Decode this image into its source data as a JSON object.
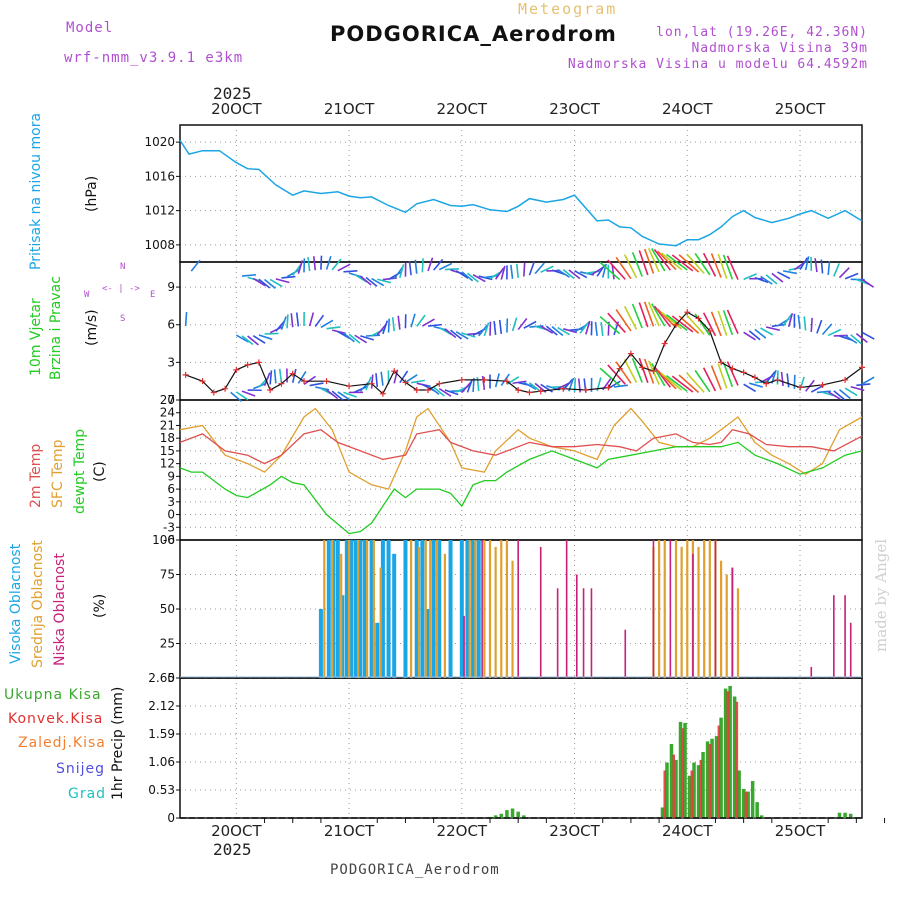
{
  "header": {
    "model_label": "Model",
    "model_name": "wrf-nmm_v3.9.1  e3km",
    "meteogram": "Meteogram",
    "station": "PODGORICA_Aerodrom",
    "lonlat": "lon,lat (19.26E, 42.36N)",
    "altitude": "Nadmorska Visina 39m",
    "model_altitude": "Nadmorska Visina u modelu 64.4592m",
    "footer_station": "PODGORICA_Aerodrom",
    "watermark": "made by Angel",
    "year_top": "2025",
    "year_bottom": "2025"
  },
  "colors": {
    "pressure": "#1aa6e6",
    "t2m": "#e05050",
    "sfc": "#e0a030",
    "dewpt": "#22cc22",
    "high": "#1aa6e6",
    "mid": "#e0a030",
    "low": "#c8207a",
    "total": "#3aa82e",
    "conv": "#e03030",
    "strat": "#f08030",
    "snow": "#5050e0",
    "grad": "#20c0c0",
    "purple": "#b050d0"
  },
  "chart_data": [
    {
      "type": "line",
      "panel": "pressure",
      "title": "Pritisak na nivou mora",
      "ylabel": "(hPa)",
      "ylim": [
        1006,
        1022
      ],
      "yticks": [
        "1008",
        "1012",
        "1016",
        "1020"
      ],
      "x_unit": "days since 20 OCT 00Z",
      "xlim": [
        -0.5,
        5.55
      ],
      "x_tick_labels": [
        "20OCT",
        "21OCT",
        "22OCT",
        "23OCT",
        "24OCT",
        "25OCT"
      ],
      "series": [
        {
          "name": "MSLP",
          "x": [
            -0.5,
            -0.42,
            -0.3,
            -0.15,
            0.0,
            0.1,
            0.2,
            0.35,
            0.5,
            0.6,
            0.75,
            0.9,
            1.0,
            1.1,
            1.2,
            1.35,
            1.5,
            1.6,
            1.75,
            1.9,
            2.0,
            2.1,
            2.25,
            2.4,
            2.5,
            2.6,
            2.75,
            2.9,
            3.0,
            3.1,
            3.2,
            3.3,
            3.4,
            3.5,
            3.6,
            3.75,
            3.9,
            4.0,
            4.1,
            4.2,
            4.3,
            4.4,
            4.5,
            4.6,
            4.75,
            4.9,
            5.0,
            5.1,
            5.25,
            5.4,
            5.55
          ],
          "values": [
            1020.2,
            1018.6,
            1019.0,
            1019.0,
            1017.6,
            1016.9,
            1016.8,
            1015.0,
            1013.8,
            1014.3,
            1014.0,
            1014.2,
            1013.7,
            1013.5,
            1013.6,
            1012.6,
            1011.8,
            1012.8,
            1013.3,
            1012.6,
            1012.5,
            1012.7,
            1012.1,
            1011.9,
            1012.5,
            1013.4,
            1013.0,
            1013.3,
            1013.8,
            1012.3,
            1010.8,
            1010.9,
            1010.1,
            1010.0,
            1009.0,
            1008.1,
            1007.9,
            1008.6,
            1008.6,
            1009.2,
            1010.1,
            1011.3,
            1012.0,
            1011.2,
            1010.6,
            1011.1,
            1011.6,
            1012.0,
            1011.1,
            1012.0,
            1010.8
          ]
        }
      ]
    },
    {
      "type": "line",
      "panel": "wind",
      "title": "10m Vjetar Brzina i Pravac",
      "ylabel": "(m/s)",
      "ylim": [
        0,
        11
      ],
      "yticks": [
        "0",
        "3",
        "6",
        "9"
      ],
      "compass": {
        "n": "N",
        "s": "S",
        "e": "E",
        "w": "W"
      },
      "xlim": [
        -0.5,
        5.55
      ],
      "series": [
        {
          "name": "Wind speed",
          "x": [
            -0.45,
            -0.3,
            -0.2,
            -0.1,
            0.0,
            0.1,
            0.2,
            0.3,
            0.4,
            0.5,
            0.6,
            0.8,
            1.0,
            1.2,
            1.3,
            1.4,
            1.5,
            1.6,
            1.7,
            1.8,
            2.0,
            2.2,
            2.4,
            2.5,
            2.6,
            2.7,
            2.9,
            3.1,
            3.3,
            3.4,
            3.5,
            3.6,
            3.7,
            3.8,
            3.9,
            4.0,
            4.1,
            4.2,
            4.3,
            4.4,
            4.5,
            4.6,
            4.7,
            4.8,
            5.0,
            5.2,
            5.4,
            5.55
          ],
          "values": [
            2.0,
            1.5,
            0.6,
            0.9,
            2.4,
            2.8,
            3.0,
            0.8,
            1.3,
            2.1,
            1.5,
            1.5,
            1.1,
            1.3,
            0.5,
            2.3,
            1.4,
            0.8,
            0.8,
            1.3,
            1.6,
            1.6,
            1.5,
            0.8,
            0.6,
            0.7,
            0.9,
            0.8,
            1.0,
            2.5,
            3.7,
            2.6,
            2.3,
            4.5,
            6.0,
            7.0,
            6.5,
            5.5,
            3.0,
            2.5,
            2.2,
            1.8,
            1.3,
            1.6,
            1.0,
            1.2,
            1.6,
            2.6
          ]
        }
      ]
    },
    {
      "type": "line",
      "panel": "temperature",
      "labels": [
        "2m Temp",
        "SFC Temp",
        "dewpt Temp"
      ],
      "ylabel": "(C)",
      "ylim": [
        -6,
        27
      ],
      "yticks": [
        "27",
        "24",
        "21",
        "18",
        "15",
        "12",
        "9",
        "6",
        "3",
        "0",
        "-3",
        "-6"
      ],
      "xlim": [
        -0.5,
        5.55
      ],
      "series": [
        {
          "name": "2m Temp",
          "x": [
            -0.5,
            -0.3,
            -0.1,
            0.1,
            0.25,
            0.4,
            0.6,
            0.75,
            0.9,
            1.1,
            1.3,
            1.5,
            1.6,
            1.8,
            1.9,
            2.1,
            2.3,
            2.5,
            2.6,
            2.8,
            3.0,
            3.2,
            3.4,
            3.55,
            3.7,
            3.9,
            4.05,
            4.2,
            4.3,
            4.4,
            4.55,
            4.7,
            4.9,
            5.1,
            5.3,
            5.55
          ],
          "values": [
            17,
            19,
            15,
            14,
            12,
            14,
            19,
            20,
            17,
            15,
            13,
            14,
            19,
            20,
            17,
            15,
            14,
            16,
            17,
            16,
            16,
            16.5,
            16,
            15,
            18,
            19,
            17,
            16.5,
            17,
            20,
            19,
            16.5,
            16,
            16,
            15,
            18.5
          ]
        },
        {
          "name": "SFC Temp",
          "x": [
            -0.5,
            -0.3,
            -0.1,
            0.1,
            0.25,
            0.4,
            0.6,
            0.7,
            0.85,
            1.0,
            1.2,
            1.35,
            1.5,
            1.6,
            1.7,
            1.9,
            2.0,
            2.2,
            2.3,
            2.5,
            2.6,
            2.8,
            3.0,
            3.2,
            3.35,
            3.5,
            3.6,
            3.75,
            3.9,
            4.05,
            4.2,
            4.35,
            4.45,
            4.6,
            4.75,
            4.9,
            5.05,
            5.2,
            5.35,
            5.55
          ],
          "values": [
            20,
            21,
            14,
            12,
            10,
            14,
            23,
            25,
            20,
            10,
            7,
            6,
            15,
            23,
            25,
            17,
            11,
            10,
            15,
            20,
            18,
            16,
            15,
            13,
            21,
            25,
            22,
            17,
            16,
            16,
            18,
            21,
            23,
            17,
            14,
            12,
            9.5,
            12,
            20,
            23
          ]
        },
        {
          "name": "dewpt Temp",
          "x": [
            -0.5,
            -0.4,
            -0.3,
            -0.2,
            -0.1,
            0.0,
            0.1,
            0.3,
            0.4,
            0.5,
            0.6,
            0.8,
            1.0,
            1.1,
            1.2,
            1.4,
            1.5,
            1.6,
            1.8,
            1.9,
            2.0,
            2.1,
            2.2,
            2.3,
            2.4,
            2.6,
            2.8,
            3.0,
            3.1,
            3.2,
            3.3,
            3.5,
            3.7,
            3.9,
            4.1,
            4.3,
            4.45,
            4.6,
            4.8,
            5.0,
            5.2,
            5.4,
            5.55
          ],
          "values": [
            11,
            10,
            10,
            8,
            6,
            4.5,
            4,
            7,
            9,
            7.5,
            7,
            0,
            -4.5,
            -4,
            -2,
            6,
            4,
            6,
            6,
            5,
            2,
            7,
            8,
            8,
            10,
            13,
            15,
            13,
            12,
            11,
            13,
            14,
            15,
            16,
            16,
            16,
            17,
            14,
            12,
            9.5,
            11,
            14,
            15
          ]
        }
      ]
    },
    {
      "type": "bar",
      "panel": "clouds",
      "labels": [
        "Visoka Oblacnost",
        "Srednja Oblacnost",
        "Niska Oblacnost"
      ],
      "ylabel": "(%)",
      "ylim": [
        0,
        100
      ],
      "yticks": [
        "0",
        "25",
        "50",
        "75",
        "100"
      ],
      "xlim": [
        -0.5,
        5.55
      ],
      "series": [
        {
          "name": "Visoka",
          "x": [
            0.75,
            0.82,
            0.86,
            0.9,
            0.94,
            0.98,
            1.02,
            1.06,
            1.1,
            1.14,
            1.2,
            1.25,
            1.3,
            1.35,
            1.4,
            1.5,
            1.6,
            1.65,
            1.7,
            1.75,
            1.8,
            1.9,
            2.0,
            2.05,
            2.1,
            2.15
          ],
          "values": [
            50,
            100,
            100,
            100,
            60,
            100,
            100,
            100,
            100,
            100,
            100,
            40,
            100,
            100,
            90,
            100,
            100,
            100,
            50,
            100,
            100,
            100,
            100,
            100,
            100,
            100
          ]
        },
        {
          "name": "Srednja",
          "x": [
            0.78,
            0.85,
            0.93,
            1.0,
            1.08,
            1.16,
            1.22,
            1.28,
            1.55,
            1.62,
            1.68,
            1.72,
            1.78,
            1.85,
            2.07,
            2.12,
            2.2,
            2.25,
            2.3,
            2.35,
            2.4,
            2.45,
            3.7,
            3.75,
            3.8,
            3.9,
            3.95,
            4.0,
            4.05,
            4.1,
            4.15,
            4.2,
            4.25,
            4.3,
            4.35,
            4.4,
            4.45
          ],
          "values": [
            100,
            100,
            90,
            100,
            100,
            100,
            100,
            80,
            100,
            95,
            100,
            100,
            100,
            90,
            100,
            100,
            100,
            100,
            95,
            100,
            100,
            85,
            95,
            100,
            100,
            100,
            95,
            100,
            100,
            95,
            100,
            100,
            100,
            85,
            75,
            80,
            65
          ]
        },
        {
          "name": "Niska",
          "x": [
            2.02,
            2.18,
            2.5,
            2.7,
            2.85,
            2.93,
            3.02,
            3.08,
            3.15,
            3.45,
            3.7,
            3.85,
            4.05,
            4.25,
            4.4,
            5.1,
            5.3,
            5.4,
            5.45
          ],
          "values": [
            45,
            100,
            100,
            95,
            65,
            100,
            75,
            65,
            65,
            35,
            100,
            100,
            90,
            100,
            80,
            8,
            60,
            60,
            40
          ]
        }
      ]
    },
    {
      "type": "bar",
      "panel": "precip",
      "legend": [
        "Ukupna Kisa",
        "Konvek.Kisa",
        "Zaledj.Kisa",
        "Snijeg",
        "Grad"
      ],
      "ylabel": "1hr Precip (mm)",
      "ylim": [
        0,
        2.65
      ],
      "yticks": [
        "0",
        "0.53",
        "1.06",
        "1.59",
        "2.12",
        "2.65"
      ],
      "xlim": [
        -0.5,
        5.55
      ],
      "x_tick_labels": [
        "20OCT",
        "21OCT",
        "22OCT",
        "23OCT",
        "24OCT",
        "25OCT"
      ],
      "series": [
        {
          "name": "Ukupna Kisa",
          "x": [
            2.25,
            2.3,
            2.35,
            2.4,
            2.45,
            2.5,
            2.55,
            3.78,
            3.82,
            3.86,
            3.9,
            3.94,
            3.98,
            4.02,
            4.06,
            4.1,
            4.14,
            4.18,
            4.22,
            4.26,
            4.3,
            4.34,
            4.38,
            4.42,
            4.46,
            4.5,
            4.54,
            4.58,
            4.62,
            4.66,
            5.35,
            5.4,
            5.45
          ],
          "values": [
            0.02,
            0.05,
            0.08,
            0.15,
            0.18,
            0.12,
            0.05,
            0.2,
            1.05,
            1.4,
            1.1,
            1.82,
            1.8,
            0.8,
            1.05,
            1.0,
            1.25,
            1.45,
            1.5,
            1.55,
            1.9,
            2.45,
            2.5,
            2.3,
            0.9,
            0.55,
            0.5,
            0.7,
            0.3,
            0.05,
            0.1,
            0.1,
            0.08
          ]
        },
        {
          "name": "Konvek.Kisa",
          "x": [
            3.8,
            3.88,
            3.96,
            4.04,
            4.12,
            4.2,
            4.28,
            4.36,
            4.44,
            4.52
          ],
          "values": [
            0.9,
            1.2,
            1.7,
            0.9,
            1.1,
            1.4,
            1.75,
            2.4,
            2.2,
            0.5
          ]
        }
      ]
    }
  ]
}
